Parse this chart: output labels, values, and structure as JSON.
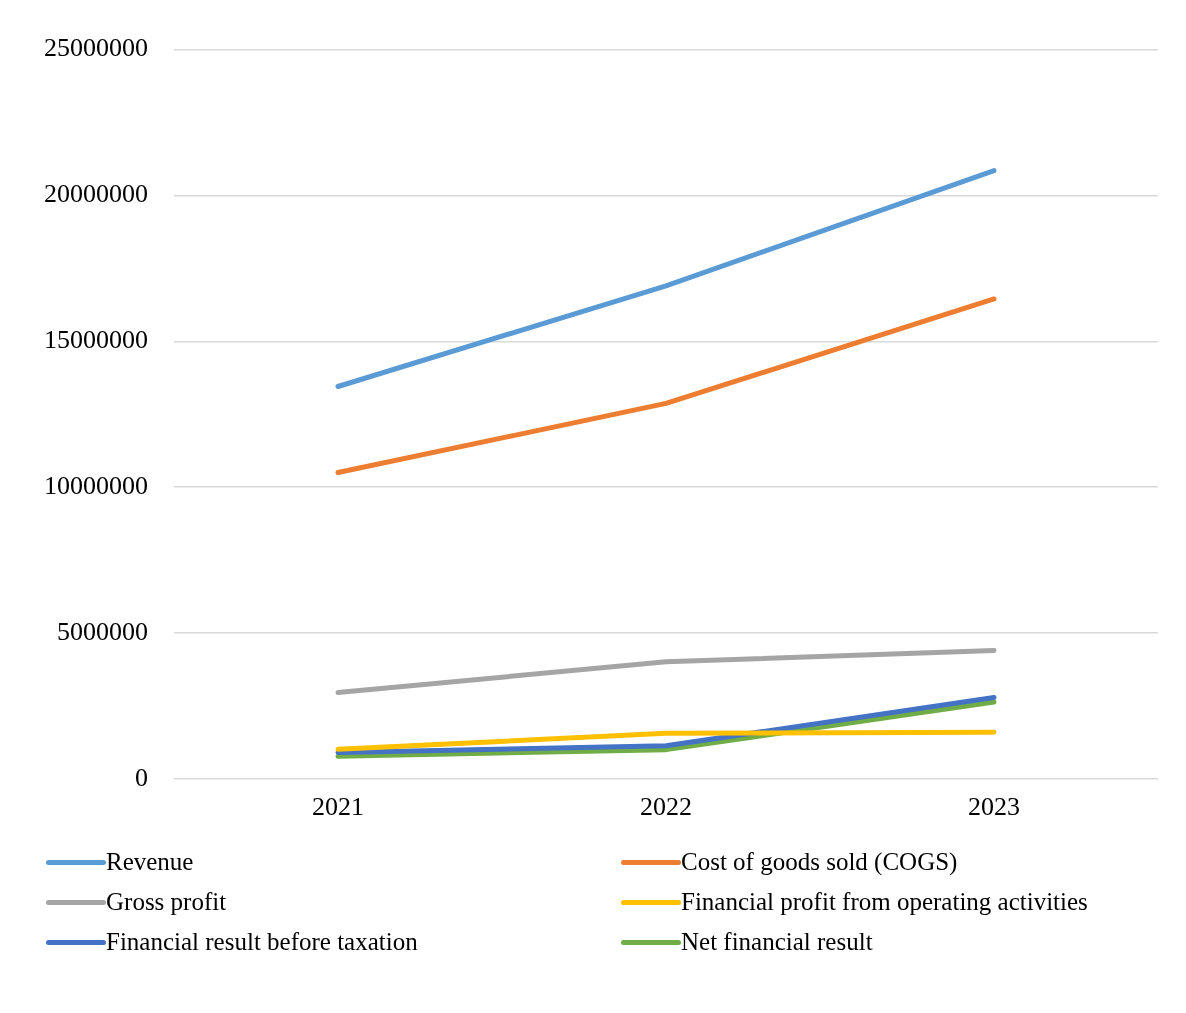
{
  "chart_data": {
    "type": "line",
    "categories": [
      "2021",
      "2022",
      "2023"
    ],
    "series": [
      {
        "name": "Revenue",
        "color": "#5b9bd5",
        "values": [
          13450000,
          16900000,
          20850000
        ]
      },
      {
        "name": "Cost of goods sold (COGS)",
        "color": "#ed7d31",
        "values": [
          10500000,
          12870000,
          16450000
        ]
      },
      {
        "name": "Gross profit",
        "color": "#a5a5a5",
        "values": [
          2960000,
          4010000,
          4400000
        ]
      },
      {
        "name": "Financial profit from operating activities",
        "color": "#ffc000",
        "values": [
          1010000,
          1560000,
          1600000
        ]
      },
      {
        "name": "Financial result before taxation",
        "color": "#4472c4",
        "values": [
          900000,
          1130000,
          2790000
        ]
      },
      {
        "name": "Net financial result",
        "color": "#70ad47",
        "values": [
          770000,
          1000000,
          2630000
        ]
      }
    ],
    "ylim": [
      0,
      25000000
    ],
    "yticks": [
      0,
      5000000,
      10000000,
      15000000,
      20000000,
      25000000
    ],
    "grid": "y",
    "legend": "bottom",
    "marker": "none",
    "line_style": "solid"
  }
}
